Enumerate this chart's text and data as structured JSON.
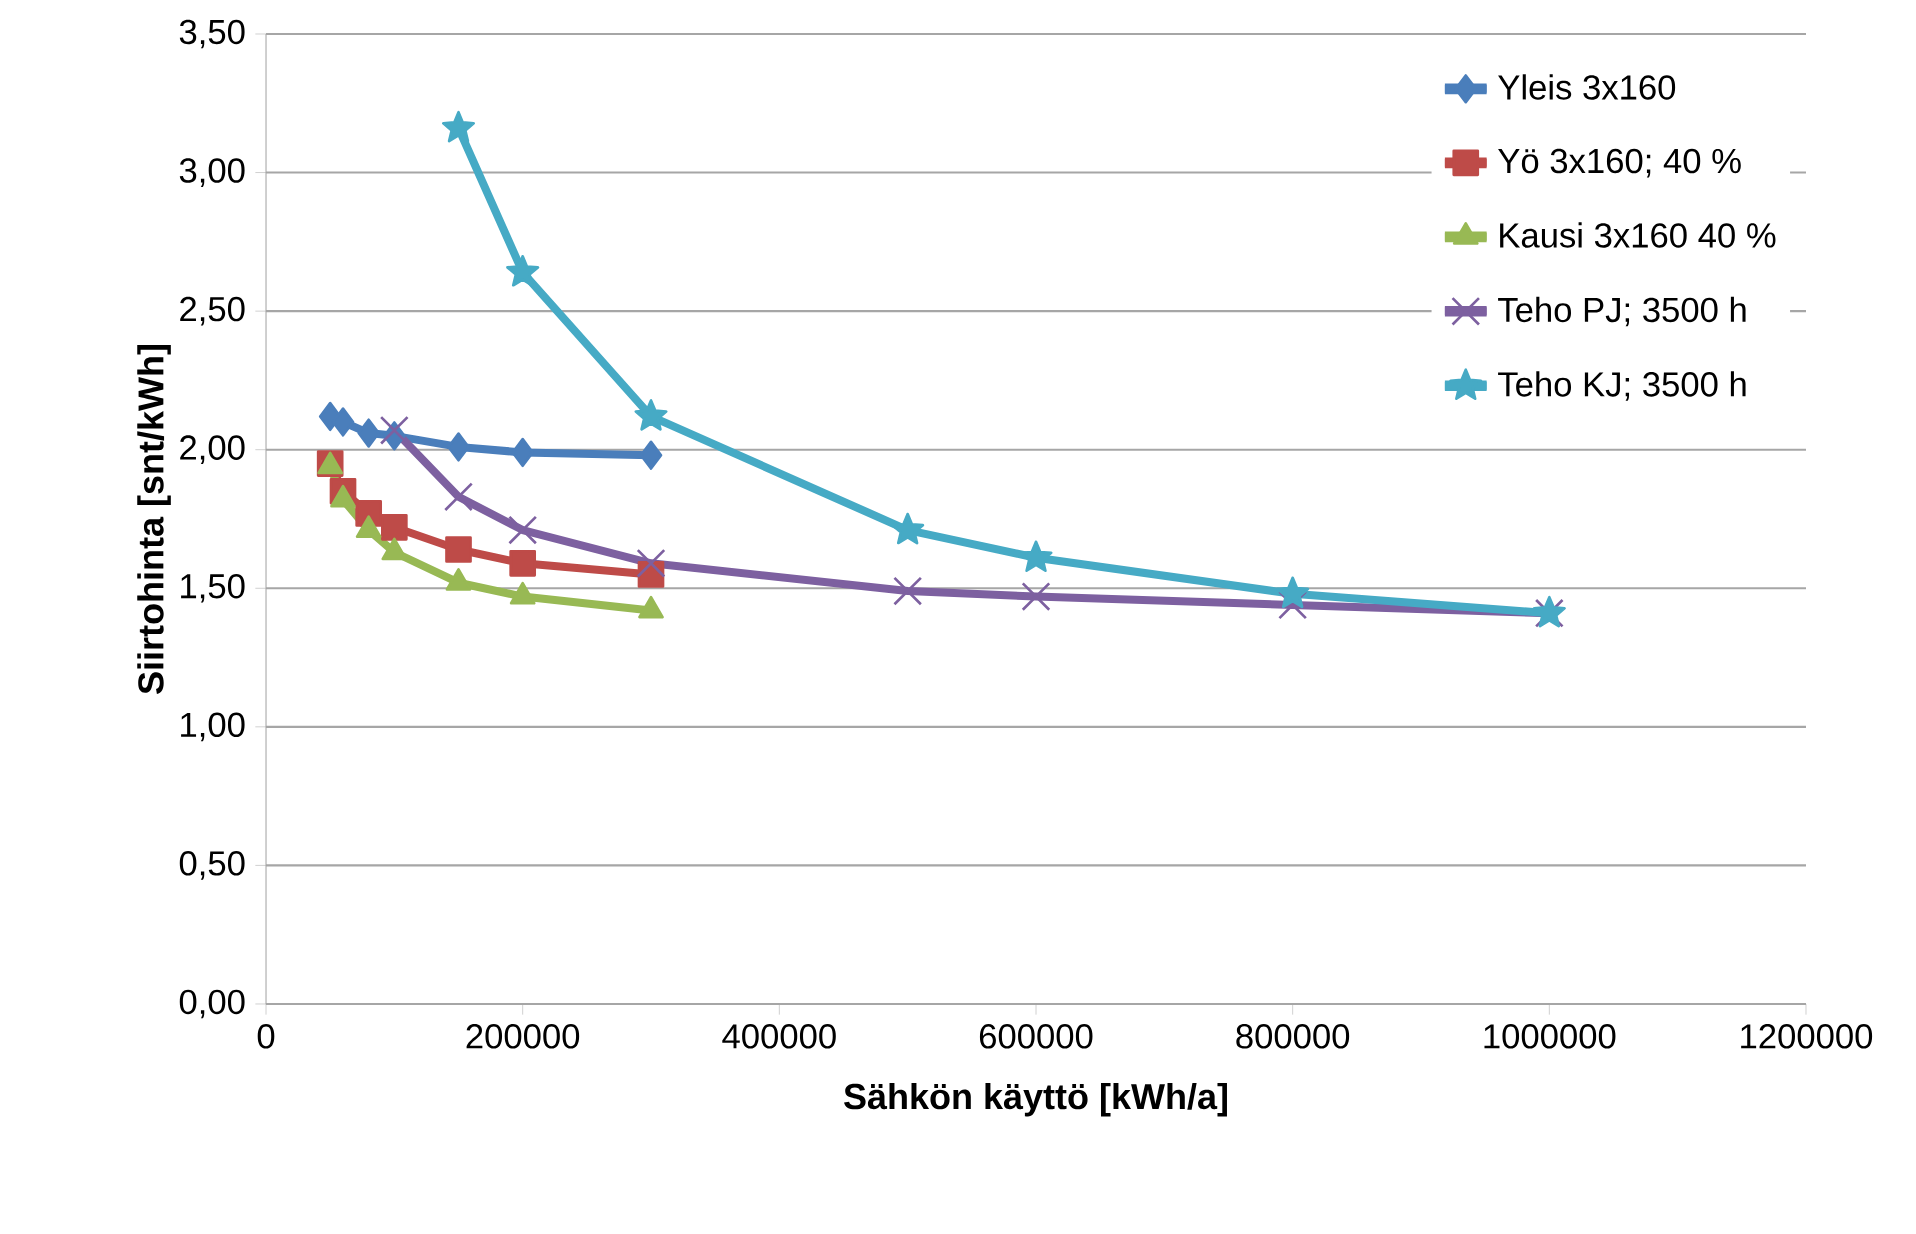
{
  "chart_data": {
    "type": "line",
    "xlabel": "Sähkön käyttö [kWh/a]",
    "ylabel": "Siirtohinta [snt/kWh]",
    "xlim": [
      0,
      1200000
    ],
    "xticks": [
      0,
      200000,
      400000,
      600000,
      800000,
      1000000,
      1200000
    ],
    "ylim": [
      0,
      3.5
    ],
    "yticks": [
      {
        "value": 0,
        "label": "0,00"
      },
      {
        "value": 0.5,
        "label": "0,50"
      },
      {
        "value": 1,
        "label": "1,00"
      },
      {
        "value": 1.5,
        "label": "1,50"
      },
      {
        "value": 2,
        "label": "2,00"
      },
      {
        "value": 2.5,
        "label": "2,50"
      },
      {
        "value": 3,
        "label": "3,00"
      },
      {
        "value": 3.5,
        "label": "3,50"
      }
    ],
    "grid": "y",
    "legend": "top right",
    "series": [
      {
        "name": "Yleis 3x160",
        "color": "#4a7ebb",
        "marker": "diamond",
        "x": [
          50000,
          60000,
          80000,
          100000,
          150000,
          200000,
          300000
        ],
        "values": [
          2.12,
          2.1,
          2.06,
          2.05,
          2.01,
          1.99,
          1.98
        ]
      },
      {
        "name": "Yö 3x160; 40 %",
        "color": "#be4b48",
        "marker": "square",
        "x": [
          50000,
          60000,
          80000,
          100000,
          150000,
          200000,
          300000
        ],
        "values": [
          1.95,
          1.85,
          1.77,
          1.72,
          1.64,
          1.59,
          1.55
        ]
      },
      {
        "name": "Kausi 3x160 40 %",
        "color": "#98b954",
        "marker": "triangle",
        "x": [
          50000,
          60000,
          80000,
          100000,
          150000,
          200000,
          300000
        ],
        "values": [
          1.94,
          1.82,
          1.71,
          1.63,
          1.52,
          1.47,
          1.42
        ]
      },
      {
        "name": "Teho PJ; 3500 h",
        "color": "#7d60a0",
        "marker": "cross",
        "x": [
          100000,
          150000,
          200000,
          300000,
          500000,
          600000,
          800000,
          1000000
        ],
        "values": [
          2.07,
          1.83,
          1.71,
          1.59,
          1.49,
          1.47,
          1.44,
          1.41
        ]
      },
      {
        "name": "Teho KJ; 3500 h",
        "color": "#46aac5",
        "marker": "star",
        "x": [
          150000,
          200000,
          300000,
          500000,
          600000,
          800000,
          1000000
        ],
        "values": [
          3.16,
          2.64,
          2.12,
          1.71,
          1.61,
          1.48,
          1.41
        ]
      }
    ]
  }
}
